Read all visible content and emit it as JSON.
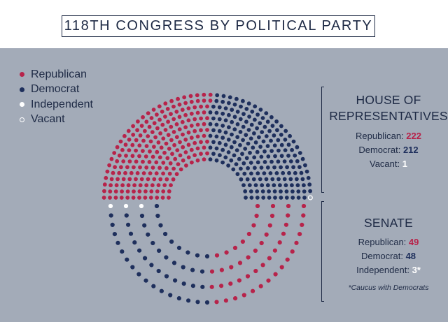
{
  "title": "118TH CONGRESS BY POLITICAL PARTY",
  "colors": {
    "republican": "#b7234a",
    "democrat": "#1e2f5c",
    "independent": "#ffffff",
    "vacant": "#ffffff",
    "background": "#a3abb8"
  },
  "legend": [
    {
      "label": "Republican",
      "color": "#b7234a",
      "style": "filled"
    },
    {
      "label": "Democrat",
      "color": "#1e2f5c",
      "style": "filled"
    },
    {
      "label": "Independent",
      "color": "#ffffff",
      "style": "filled"
    },
    {
      "label": "Vacant",
      "color": "#ffffff",
      "style": "ring"
    }
  ],
  "house": {
    "title_line1": "HOUSE OF",
    "title_line2": "REPRESENTATIVES",
    "republican_label": "Republican:",
    "republican_value": "222",
    "democrat_label": "Democrat:",
    "democrat_value": "212",
    "vacant_label": "Vacant:",
    "vacant_value": "1"
  },
  "senate": {
    "title": "SENATE",
    "republican_label": "Republican:",
    "republican_value": "49",
    "democrat_label": "Democrat:",
    "democrat_value": "48",
    "independent_label": "Independent:",
    "independent_value": "3",
    "independent_mark": "*",
    "footnote": "*Caucus with Democrats"
  },
  "chart_data": [
    {
      "type": "parliament",
      "title": "HOUSE OF REPRESENTATIVES",
      "series": [
        {
          "name": "Republican",
          "values": [
            222
          ]
        },
        {
          "name": "Democrat",
          "values": [
            212
          ]
        },
        {
          "name": "Vacant",
          "values": [
            1
          ]
        }
      ],
      "total_seats": 435,
      "orientation": "upper-half"
    },
    {
      "type": "parliament",
      "title": "SENATE",
      "series": [
        {
          "name": "Republican",
          "values": [
            49
          ]
        },
        {
          "name": "Democrat",
          "values": [
            48
          ]
        },
        {
          "name": "Independent",
          "values": [
            3
          ]
        }
      ],
      "total_seats": 100,
      "orientation": "lower-half",
      "footnote": "*Caucus with Democrats"
    }
  ]
}
